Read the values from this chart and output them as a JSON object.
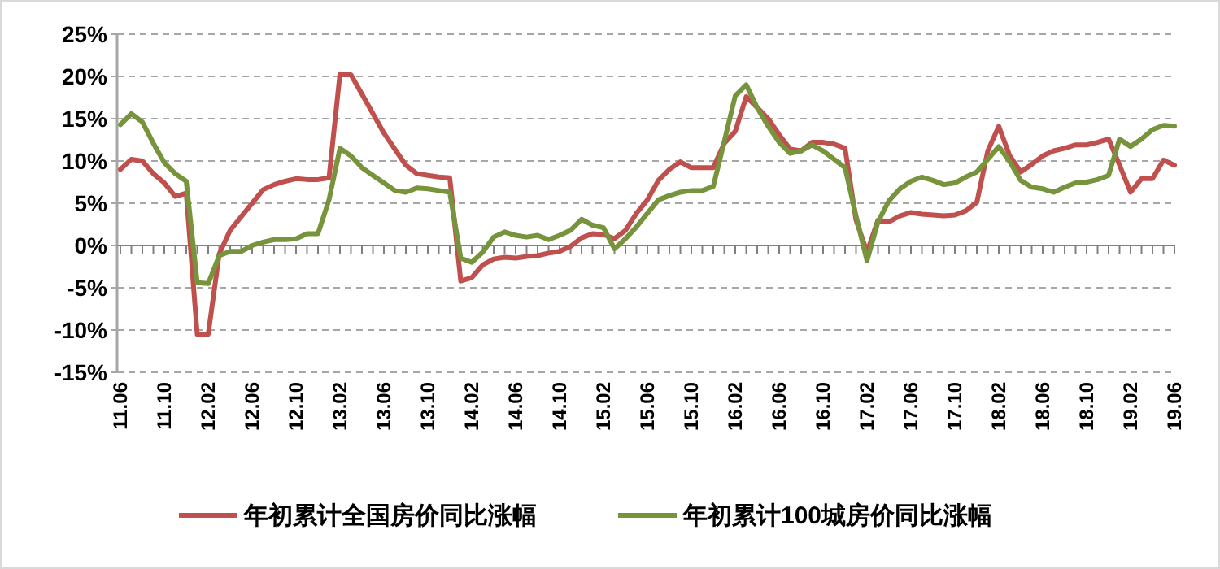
{
  "chart_data": {
    "type": "line",
    "categories": [
      "11.06",
      null,
      null,
      null,
      "11.10",
      null,
      null,
      null,
      "12.02",
      null,
      null,
      null,
      "12.06",
      null,
      null,
      null,
      "12.10",
      null,
      null,
      null,
      "13.02",
      null,
      null,
      null,
      "13.06",
      null,
      null,
      null,
      "13.10",
      null,
      null,
      null,
      "14.02",
      null,
      null,
      null,
      "14.06",
      null,
      null,
      null,
      "14.10",
      null,
      null,
      null,
      "15.02",
      null,
      null,
      null,
      "15.06",
      null,
      null,
      null,
      "15.10",
      null,
      null,
      null,
      "16.02",
      null,
      null,
      null,
      "16.06",
      null,
      null,
      null,
      "16.10",
      null,
      null,
      null,
      "17.02",
      null,
      null,
      null,
      "17.06",
      null,
      null,
      null,
      "17.10",
      null,
      null,
      null,
      "18.02",
      null,
      null,
      null,
      "18.06",
      null,
      null,
      null,
      "18.10",
      null,
      null,
      null,
      "19.02",
      null,
      null,
      null,
      "19.06"
    ],
    "series": [
      {
        "name": "年初累计全国房价同比涨幅",
        "color": "#c0504d",
        "values": [
          9.0,
          10.2,
          10.0,
          8.5,
          7.4,
          5.8,
          6.2,
          -10.5,
          -10.5,
          -1.0,
          1.8,
          3.4,
          5.0,
          6.6,
          7.2,
          7.6,
          7.9,
          7.8,
          7.8,
          8.0,
          20.3,
          20.2,
          17.9,
          15.6,
          13.3,
          11.4,
          9.5,
          8.5,
          8.3,
          8.1,
          8.0,
          -4.2,
          -3.8,
          -2.3,
          -1.6,
          -1.4,
          -1.5,
          -1.3,
          -1.2,
          -0.9,
          -0.7,
          -0.1,
          0.9,
          1.4,
          1.3,
          0.8,
          1.8,
          3.8,
          5.4,
          7.7,
          9.0,
          9.9,
          9.2,
          9.2,
          9.2,
          12.1,
          13.5,
          17.6,
          16.3,
          15.0,
          13.1,
          11.4,
          11.2,
          12.2,
          12.2,
          12.0,
          11.5,
          3.0,
          -0.8,
          3.0,
          2.8,
          3.5,
          3.9,
          3.7,
          3.6,
          3.5,
          3.6,
          4.1,
          5.1,
          11.2,
          14.1,
          10.6,
          8.7,
          9.6,
          10.6,
          11.2,
          11.5,
          11.9,
          11.9,
          12.2,
          12.6,
          9.5,
          6.3,
          7.9,
          7.9,
          10.1,
          9.5
        ]
      },
      {
        "name": "年初累计100城房价同比涨幅",
        "color": "#77933c",
        "values": [
          14.3,
          15.6,
          14.6,
          12.1,
          9.8,
          8.5,
          7.6,
          -4.4,
          -4.5,
          -1.2,
          -0.7,
          -0.7,
          0.0,
          0.4,
          0.7,
          0.7,
          0.8,
          1.4,
          1.4,
          5.4,
          11.5,
          10.6,
          9.2,
          8.3,
          7.4,
          6.5,
          6.3,
          6.8,
          6.7,
          6.5,
          6.3,
          -1.5,
          -2.0,
          -0.8,
          1.0,
          1.6,
          1.2,
          1.0,
          1.2,
          0.7,
          1.2,
          1.8,
          3.1,
          2.4,
          2.1,
          -0.4,
          0.8,
          2.2,
          3.8,
          5.4,
          5.9,
          6.3,
          6.5,
          6.5,
          7.0,
          12.3,
          17.7,
          19.0,
          16.3,
          14.1,
          12.2,
          10.9,
          11.2,
          11.9,
          11.2,
          10.2,
          9.2,
          3.5,
          -1.8,
          2.8,
          5.3,
          6.7,
          7.6,
          8.1,
          7.7,
          7.2,
          7.4,
          8.1,
          8.7,
          10.2,
          11.7,
          9.9,
          7.7,
          6.9,
          6.7,
          6.3,
          6.9,
          7.4,
          7.5,
          7.8,
          8.3,
          12.6,
          11.7,
          12.6,
          13.7,
          14.2,
          14.1
        ]
      }
    ],
    "ylim": [
      -15,
      25
    ],
    "yticks": [
      {
        "value": -15,
        "label": "-15%"
      },
      {
        "value": -10,
        "label": "-10%"
      },
      {
        "value": -5,
        "label": "-5%"
      },
      {
        "value": 0,
        "label": "0%"
      },
      {
        "value": 5,
        "label": "5%"
      },
      {
        "value": 10,
        "label": "10%"
      },
      {
        "value": 15,
        "label": "15%"
      },
      {
        "value": 20,
        "label": "20%"
      },
      {
        "value": 25,
        "label": "25%"
      }
    ],
    "grid": "y",
    "legend": "bottom",
    "line_style": "solid",
    "marker": "none"
  }
}
